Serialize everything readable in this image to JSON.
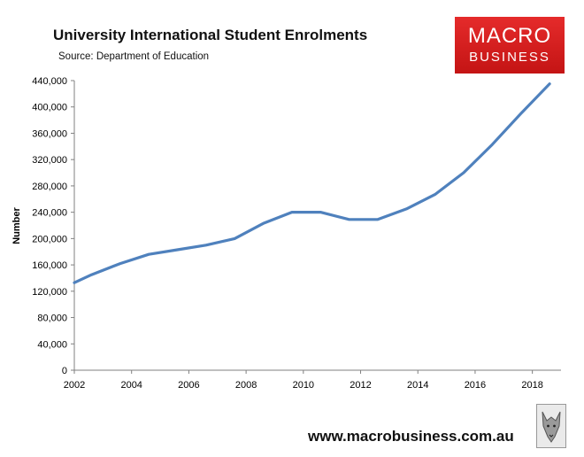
{
  "header": {
    "title": "University International Student Enrolments",
    "subtitle": "Source: Department of Education"
  },
  "logo": {
    "line1": "MACRO",
    "line2": "BUSINESS"
  },
  "footer": {
    "website": "www.macrobusiness.com.au"
  },
  "colors": {
    "line": "#4f81bd",
    "logo_red": "#d92020",
    "axis": "#808080"
  },
  "chart_data": {
    "type": "line",
    "title": "University International Student Enrolments",
    "subtitle": "Source: Department of Education",
    "xlabel": "",
    "ylabel": "Number",
    "xlim": [
      2002,
      2019
    ],
    "ylim": [
      0,
      440000
    ],
    "grid": false,
    "x_ticks": [
      2002,
      2004,
      2006,
      2008,
      2010,
      2012,
      2014,
      2016,
      2018
    ],
    "y_ticks": [
      0,
      40000,
      80000,
      120000,
      160000,
      200000,
      240000,
      280000,
      320000,
      360000,
      400000,
      440000
    ],
    "y_tick_labels": [
      "0",
      "40,000",
      "80,000",
      "120,000",
      "160,000",
      "200,000",
      "240,000",
      "280,000",
      "320,000",
      "360,000",
      "400,000",
      "440,000"
    ],
    "series": [
      {
        "x": [
          2002,
          2002.6,
          2003.6,
          2004.6,
          2005.6,
          2006.6,
          2007.6,
          2008.6,
          2009.6,
          2010.6,
          2011.6,
          2012.6,
          2013.6,
          2014.6,
          2015.6,
          2016.6,
          2017.6,
          2018.6
        ],
        "values": [
          133000,
          145000,
          162000,
          176000,
          183000,
          190000,
          200000,
          223000,
          240000,
          240000,
          229000,
          229000,
          245000,
          267000,
          300000,
          343000,
          390000,
          435000
        ]
      }
    ]
  }
}
